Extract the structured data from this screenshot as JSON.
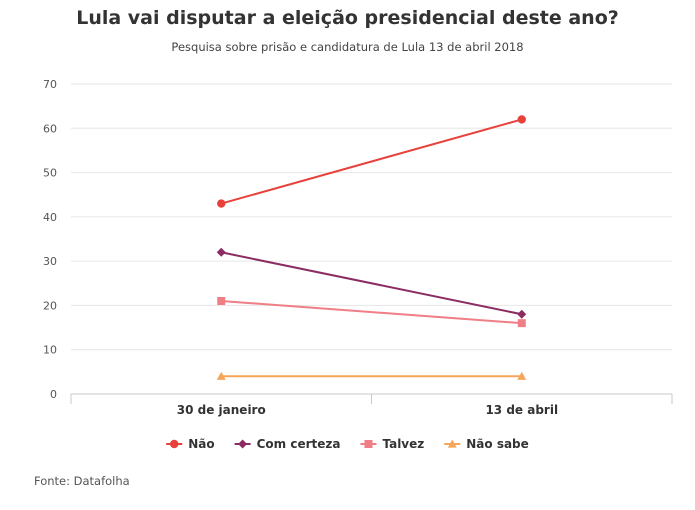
{
  "header": {
    "title": "Lula vai disputar a eleição presidencial deste ano?",
    "subtitle": "Pesquisa sobre prisão e candidatura de Lula 13 de abril 2018"
  },
  "footer": {
    "source": "Fonte: Datafolha"
  },
  "chart_data": {
    "type": "line",
    "title": "Lula vai disputar a eleição presidencial deste ano?",
    "subtitle": "Pesquisa sobre prisão e candidatura de Lula 13 de abril 2018",
    "categories": [
      "30 de janeiro",
      "13 de abril"
    ],
    "yticks": [
      0,
      10,
      20,
      30,
      40,
      50,
      60,
      70
    ],
    "ylim": [
      0,
      70
    ],
    "xlabel": "",
    "ylabel": "",
    "grid": true,
    "legend_position": "bottom",
    "series": [
      {
        "name": "Não",
        "values": [
          43,
          62
        ],
        "color": "#e8413c",
        "marker": "circle"
      },
      {
        "name": "Com certeza",
        "values": [
          32,
          18
        ],
        "color": "#8b2c62",
        "marker": "diamond"
      },
      {
        "name": "Talvez",
        "values": [
          21,
          16
        ],
        "color": "#f07e87",
        "marker": "square"
      },
      {
        "name": "Não sabe",
        "values": [
          4,
          4
        ],
        "color": "#f5a65b",
        "marker": "triangle"
      }
    ]
  }
}
